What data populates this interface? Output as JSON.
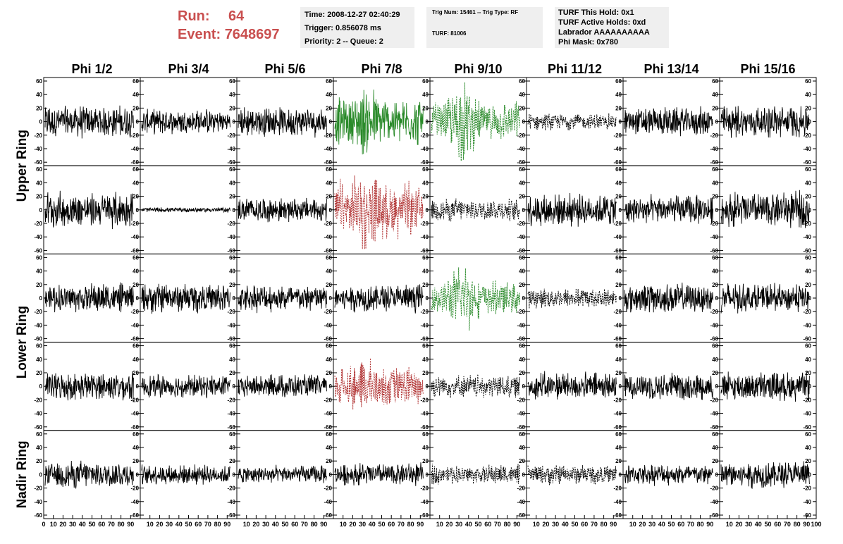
{
  "header": {
    "run_label": "Run:",
    "run_value": "64",
    "event_label": "Event:",
    "event_value": "7648697",
    "info_time": "Time: 2008-12-27 02:40:29",
    "info_trigger": "Trigger: 0.856078 ms",
    "info_priority": "Priority: 2 -- Queue: 2",
    "info_trig_num": "Trig Num: 15461 -- Trig Type: RF",
    "info_turf": "TURF: 81006",
    "info_turf_hold": "TURF This Hold: 0x1",
    "info_turf_active": "TURF Active Holds: 0xd",
    "info_labrador": "Labrador AAAAAAAAAA",
    "info_phi_mask": "Phi Mask: 0x780"
  },
  "colors": {
    "header_red": "#c94f4f",
    "info_bg": "#efefef",
    "trace_black": "#000000",
    "trace_green": "#2a8a2a",
    "trace_red": "#b03030"
  },
  "chart_data": {
    "type": "line",
    "columns": [
      "Phi 1/2",
      "Phi 3/4",
      "Phi 5/6",
      "Phi 7/8",
      "Phi 9/10",
      "Phi 11/12",
      "Phi 13/14",
      "Phi 15/16"
    ],
    "rows": [
      "Upper Ring",
      "Upper Ring",
      "Lower Ring",
      "Lower Ring",
      "Nadir Ring"
    ],
    "row_labels": [
      {
        "label": "Upper Ring",
        "rows": [
          0,
          1
        ]
      },
      {
        "label": "Lower Ring",
        "rows": [
          2,
          3
        ]
      },
      {
        "label": "Nadir Ring",
        "rows": [
          4
        ]
      }
    ],
    "ylim": [
      -60,
      60
    ],
    "y_ticks": [
      -60,
      -40,
      -20,
      0,
      20,
      40,
      60
    ],
    "xlim": [
      0,
      100
    ],
    "x_ticks": [
      0,
      10,
      20,
      30,
      40,
      50,
      60,
      70,
      80,
      90,
      100
    ],
    "samples": 260,
    "panels": [
      [
        {
          "amp": 20,
          "color": "black",
          "style": "solid"
        },
        {
          "amp": 15,
          "color": "black",
          "style": "solid"
        },
        {
          "amp": 18,
          "color": "black",
          "style": "solid"
        },
        {
          "amp": 22,
          "color": "green",
          "style": "solid",
          "burst": 1.8
        },
        {
          "amp": 18,
          "color": "green",
          "style": "dashed",
          "burst": 2.8
        },
        {
          "amp": 10,
          "color": "black",
          "style": "dashed"
        },
        {
          "amp": 18,
          "color": "black",
          "style": "solid"
        },
        {
          "amp": 20,
          "color": "black",
          "style": "solid"
        }
      ],
      [
        {
          "amp": 22,
          "color": "black",
          "style": "solid"
        },
        {
          "amp": 3,
          "color": "black",
          "style": "solid"
        },
        {
          "amp": 15,
          "color": "black",
          "style": "solid"
        },
        {
          "amp": 26,
          "color": "red",
          "style": "dashed",
          "burst": 1.8
        },
        {
          "amp": 14,
          "color": "black",
          "style": "dashed"
        },
        {
          "amp": 20,
          "color": "black",
          "style": "solid"
        },
        {
          "amp": 18,
          "color": "black",
          "style": "solid"
        },
        {
          "amp": 22,
          "color": "black",
          "style": "solid"
        }
      ],
      [
        {
          "amp": 18,
          "color": "black",
          "style": "solid"
        },
        {
          "amp": 18,
          "color": "black",
          "style": "solid"
        },
        {
          "amp": 17,
          "color": "black",
          "style": "solid"
        },
        {
          "amp": 17,
          "color": "black",
          "style": "solid"
        },
        {
          "amp": 16,
          "color": "green",
          "style": "dashed",
          "burst": 3.0
        },
        {
          "amp": 12,
          "color": "black",
          "style": "dashed"
        },
        {
          "amp": 18,
          "color": "black",
          "style": "solid"
        },
        {
          "amp": 18,
          "color": "black",
          "style": "solid"
        }
      ],
      [
        {
          "amp": 17,
          "color": "black",
          "style": "solid"
        },
        {
          "amp": 14,
          "color": "black",
          "style": "solid"
        },
        {
          "amp": 14,
          "color": "black",
          "style": "solid"
        },
        {
          "amp": 20,
          "color": "red",
          "style": "dashed",
          "burst": 1.5
        },
        {
          "amp": 14,
          "color": "black",
          "style": "dashed"
        },
        {
          "amp": 17,
          "color": "black",
          "style": "solid"
        },
        {
          "amp": 16,
          "color": "black",
          "style": "solid"
        },
        {
          "amp": 18,
          "color": "black",
          "style": "solid"
        }
      ],
      [
        {
          "amp": 17,
          "color": "black",
          "style": "solid"
        },
        {
          "amp": 12,
          "color": "black",
          "style": "solid"
        },
        {
          "amp": 11,
          "color": "black",
          "style": "solid"
        },
        {
          "amp": 14,
          "color": "black",
          "style": "solid"
        },
        {
          "amp": 12,
          "color": "black",
          "style": "dashed"
        },
        {
          "amp": 12,
          "color": "black",
          "style": "dashed"
        },
        {
          "amp": 13,
          "color": "black",
          "style": "solid"
        },
        {
          "amp": 17,
          "color": "black",
          "style": "solid"
        }
      ]
    ]
  }
}
